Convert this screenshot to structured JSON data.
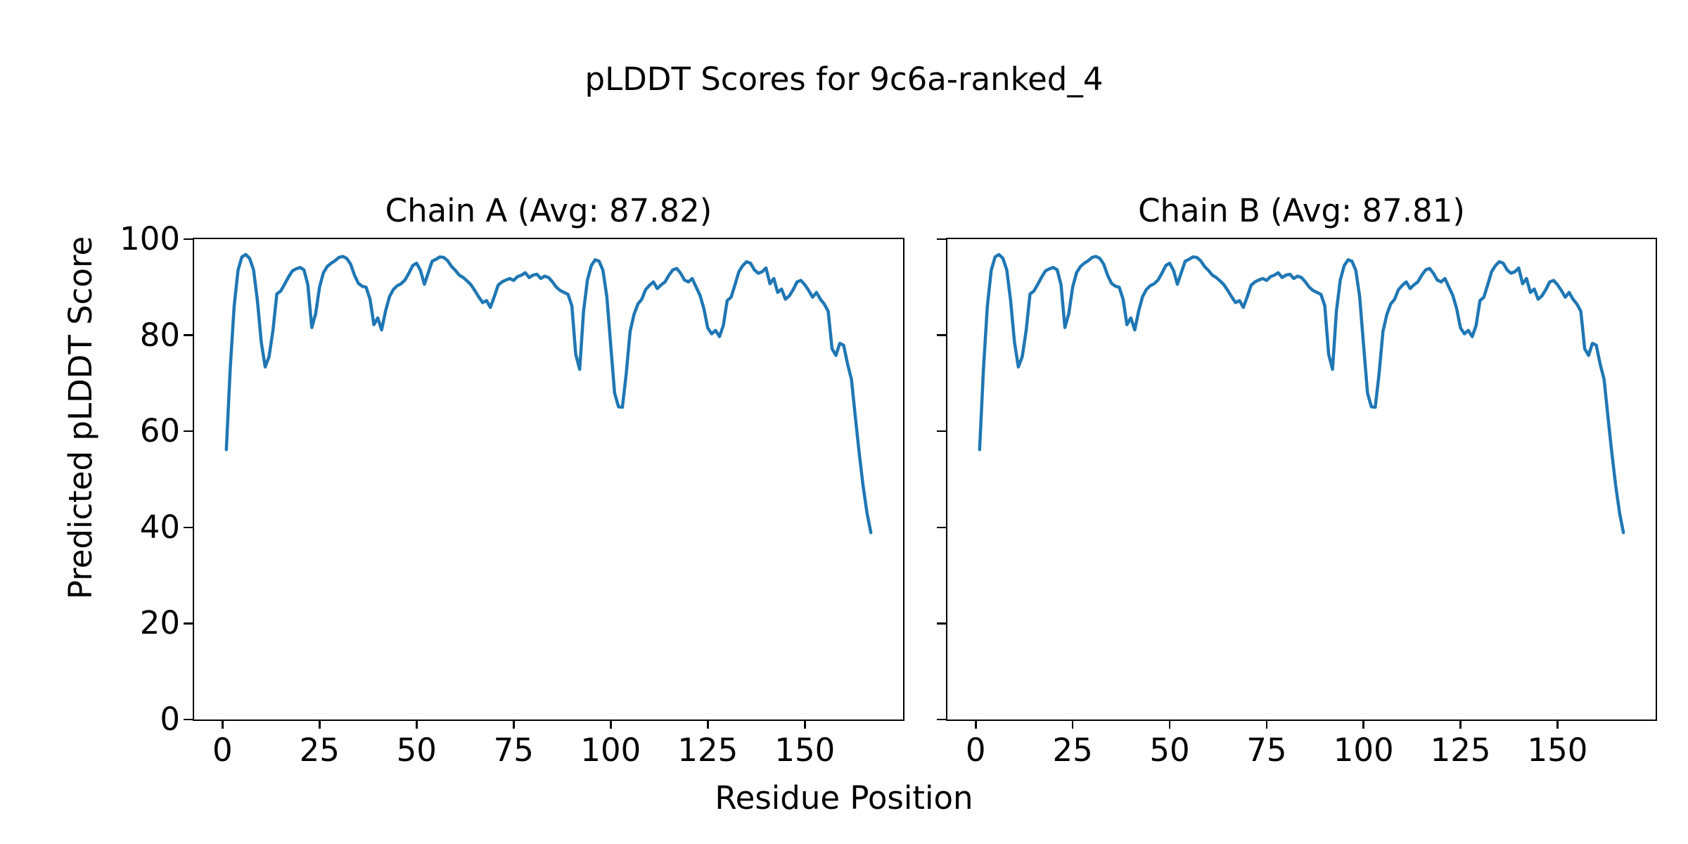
{
  "figure": {
    "suptitle": "pLDDT Scores for 9c6a-ranked_4",
    "xlabel": "Residue Position",
    "ylabel": "Predicted pLDDT Score",
    "background_color": "#ffffff",
    "text_color": "#000000"
  },
  "chart_data": [
    {
      "type": "line",
      "title": "Chain A (Avg: 87.82)",
      "chain": "A",
      "avg": 87.82,
      "line_color": "#1f77b4",
      "line_width": 4.5,
      "grid": false,
      "xlim": [
        -7.3,
        175.3
      ],
      "ylim": [
        0,
        100
      ],
      "xticks": [
        0,
        25,
        50,
        75,
        100,
        125,
        150
      ],
      "yticks": [
        0,
        20,
        40,
        60,
        80,
        100
      ],
      "show_ytick_labels": true,
      "x_start": 1,
      "x_step": 1,
      "values": [
        56.2,
        73.0,
        86.0,
        93.5,
        96.3,
        96.8,
        96.0,
        93.6,
        87.2,
        78.5,
        73.4,
        75.5,
        81.0,
        88.6,
        89.2,
        90.6,
        92.1,
        93.4,
        93.8,
        94.1,
        93.6,
        90.5,
        81.6,
        84.5,
        90.0,
        93.0,
        94.3,
        95.0,
        95.5,
        96.2,
        96.4,
        96.0,
        94.8,
        92.5,
        90.8,
        90.2,
        90.0,
        87.5,
        82.2,
        83.6,
        81.1,
        85.0,
        88.0,
        89.5,
        90.3,
        90.7,
        91.5,
        92.9,
        94.5,
        95.0,
        93.5,
        90.6,
        93.0,
        95.4,
        95.8,
        96.3,
        96.2,
        95.5,
        94.3,
        93.5,
        92.5,
        92.0,
        91.3,
        90.5,
        89.3,
        88.0,
        86.8,
        87.2,
        85.8,
        88.0,
        90.4,
        91.1,
        91.5,
        91.8,
        91.4,
        92.2,
        92.5,
        93.0,
        92.0,
        92.5,
        92.7,
        91.8,
        92.3,
        92.0,
        91.1,
        90.0,
        89.3,
        88.9,
        88.5,
        86.1,
        76.0,
        72.9,
        85.0,
        91.5,
        94.5,
        95.7,
        95.4,
        93.5,
        88.0,
        78.0,
        68.0,
        65.1,
        65.0,
        72.0,
        80.8,
        84.3,
        86.5,
        87.5,
        89.5,
        90.4,
        91.1,
        89.7,
        90.5,
        91.1,
        92.5,
        93.6,
        93.9,
        92.9,
        91.5,
        91.1,
        91.8,
        90.0,
        88.3,
        85.5,
        81.5,
        80.3,
        81.0,
        79.7,
        82.0,
        87.2,
        87.9,
        90.5,
        93.2,
        94.5,
        95.3,
        95.0,
        93.6,
        92.9,
        93.2,
        94.0,
        90.7,
        91.8,
        88.9,
        89.6,
        87.5,
        88.2,
        89.5,
        91.1,
        91.4,
        90.5,
        89.3,
        87.9,
        88.9,
        87.5,
        86.5,
        85.0,
        77.2,
        75.8,
        78.3,
        77.9,
        74.0,
        70.8,
        63.0,
        55.5,
        48.7,
        43.0,
        38.9
      ]
    },
    {
      "type": "line",
      "title": "Chain B (Avg: 87.81)",
      "chain": "B",
      "avg": 87.81,
      "line_color": "#1f77b4",
      "line_width": 4.5,
      "grid": false,
      "xlim": [
        -7.3,
        175.3
      ],
      "ylim": [
        0,
        100
      ],
      "xticks": [
        0,
        25,
        50,
        75,
        100,
        125,
        150
      ],
      "yticks": [
        0,
        20,
        40,
        60,
        80,
        100
      ],
      "show_ytick_labels": false,
      "x_start": 1,
      "x_step": 1,
      "values": [
        56.2,
        73.0,
        86.0,
        93.5,
        96.3,
        96.8,
        96.0,
        93.6,
        87.2,
        78.5,
        73.4,
        75.5,
        81.0,
        88.6,
        89.2,
        90.6,
        92.1,
        93.4,
        93.8,
        94.1,
        93.6,
        90.5,
        81.6,
        84.5,
        90.0,
        93.0,
        94.3,
        95.0,
        95.5,
        96.2,
        96.4,
        96.0,
        94.8,
        92.5,
        90.8,
        90.2,
        90.0,
        87.5,
        82.2,
        83.6,
        81.1,
        85.0,
        88.0,
        89.5,
        90.3,
        90.7,
        91.5,
        92.9,
        94.5,
        95.0,
        93.5,
        90.6,
        93.0,
        95.4,
        95.8,
        96.3,
        96.2,
        95.5,
        94.3,
        93.5,
        92.5,
        92.0,
        91.3,
        90.5,
        89.3,
        88.0,
        86.8,
        87.2,
        85.8,
        88.0,
        90.4,
        91.1,
        91.5,
        91.8,
        91.4,
        92.2,
        92.5,
        93.0,
        92.0,
        92.5,
        92.7,
        91.8,
        92.3,
        92.0,
        91.1,
        90.0,
        89.3,
        88.9,
        88.5,
        86.1,
        76.0,
        72.9,
        85.0,
        91.5,
        94.5,
        95.7,
        95.4,
        93.5,
        88.0,
        78.0,
        68.0,
        65.1,
        65.0,
        72.0,
        80.8,
        84.3,
        86.5,
        87.5,
        89.5,
        90.4,
        91.1,
        89.7,
        90.5,
        91.1,
        92.5,
        93.6,
        93.9,
        92.9,
        91.5,
        91.1,
        91.8,
        90.0,
        88.3,
        85.5,
        81.5,
        80.3,
        81.0,
        79.7,
        82.0,
        87.2,
        87.9,
        90.5,
        93.2,
        94.5,
        95.3,
        95.0,
        93.6,
        92.9,
        93.2,
        94.0,
        90.7,
        91.8,
        88.9,
        89.6,
        87.5,
        88.2,
        89.5,
        91.1,
        91.4,
        90.5,
        89.3,
        87.9,
        88.9,
        87.5,
        86.5,
        85.0,
        77.2,
        75.8,
        78.3,
        77.9,
        74.0,
        70.8,
        63.0,
        55.5,
        48.7,
        43.0,
        38.9
      ]
    }
  ]
}
